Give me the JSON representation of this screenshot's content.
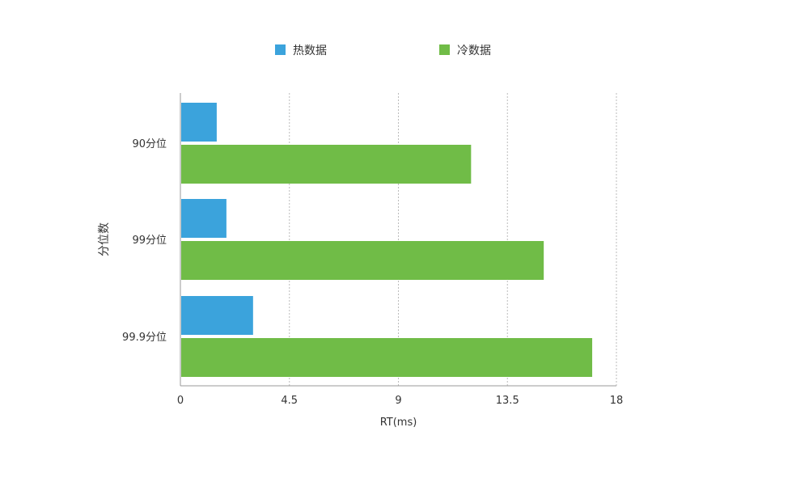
{
  "chart_data": {
    "type": "bar",
    "orientation": "horizontal",
    "categories": [
      "90分位",
      "99分位",
      "99.9分位"
    ],
    "series": [
      {
        "name": "热数据",
        "color": "#3ba3dc",
        "values": [
          1.5,
          1.9,
          3.0
        ]
      },
      {
        "name": "冷数据",
        "color": "#70bc47",
        "values": [
          12.0,
          15.0,
          17.0
        ]
      }
    ],
    "xlabel": "RT(ms)",
    "ylabel": "分位数",
    "xlim": [
      0,
      18
    ],
    "xticks": [
      "0",
      "4.5",
      "9",
      "13.5",
      "18"
    ],
    "grid": "vertical-dashed",
    "legend_position": "top"
  }
}
